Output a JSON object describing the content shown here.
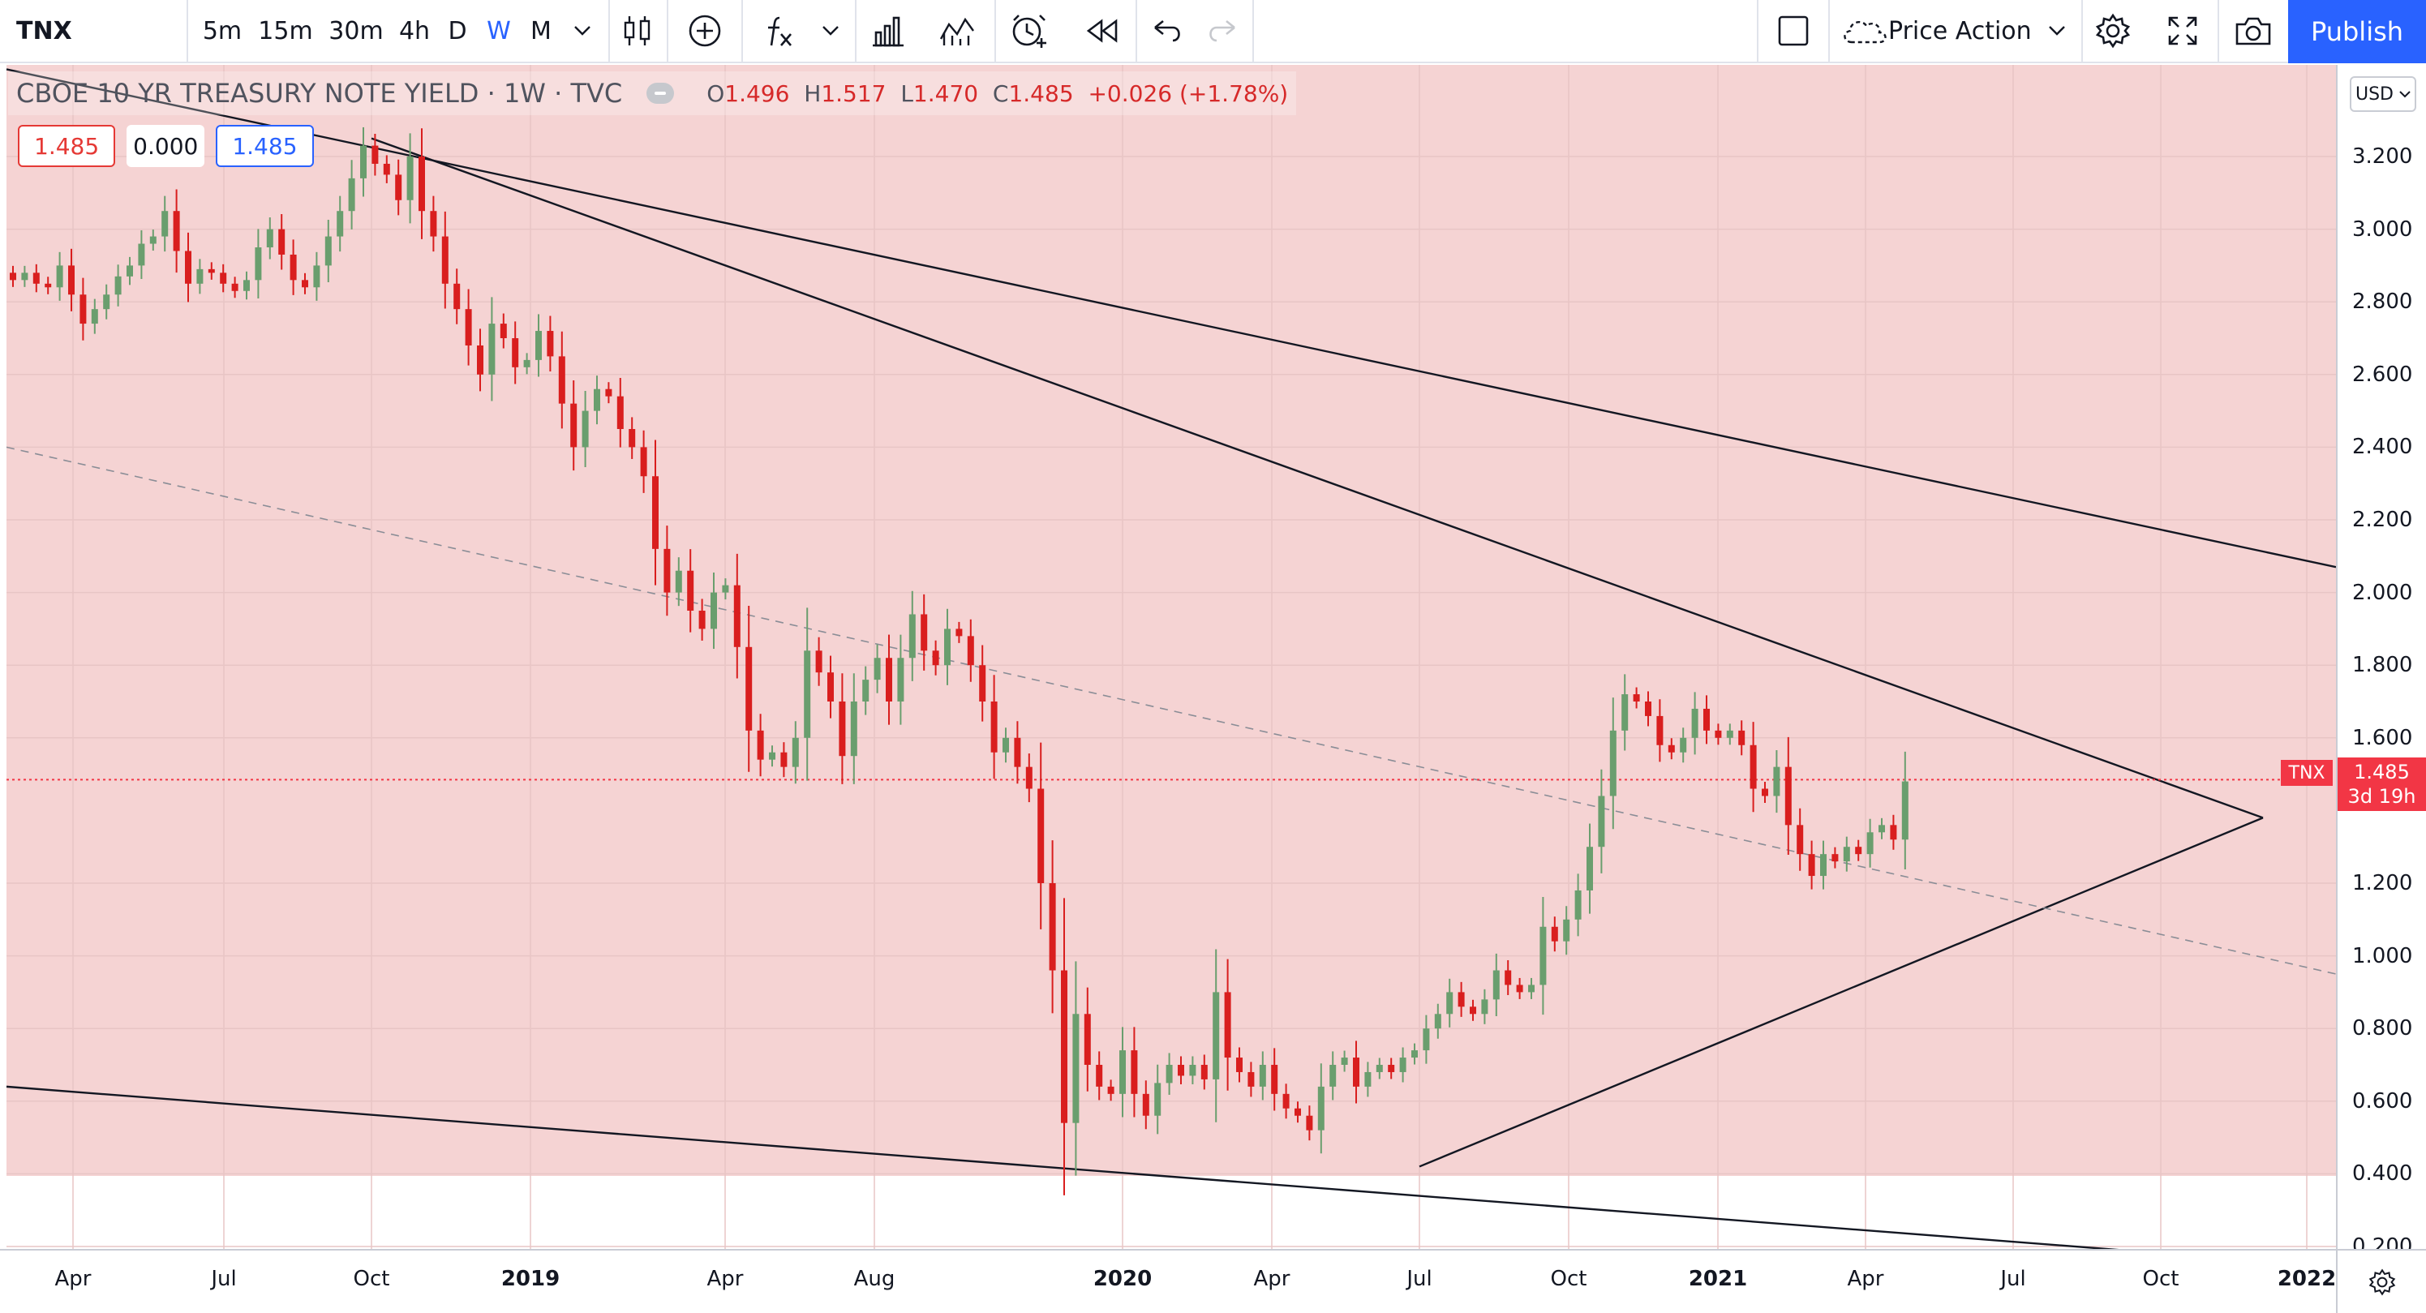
{
  "toolbar": {
    "symbol": "TNX",
    "intervals": [
      "5m",
      "15m",
      "30m",
      "4h",
      "D",
      "W",
      "M"
    ],
    "active_interval": "W",
    "layout_name": "Price Action",
    "publish_label": "Publish"
  },
  "legend": {
    "title": "CBOE 10 YR TREASURY NOTE YIELD · 1W · TVC",
    "open_label": "O",
    "open": "1.496",
    "high_label": "H",
    "high": "1.517",
    "low_label": "L",
    "low": "1.470",
    "close_label": "C",
    "close": "1.485",
    "change": "+0.026 (+1.78%)",
    "value_a": "1.485",
    "value_b": "0.000",
    "value_c": "1.485"
  },
  "price_scale": {
    "currency": "USD",
    "ticks": [
      "3.200",
      "3.000",
      "2.800",
      "2.600",
      "2.400",
      "2.200",
      "2.000",
      "1.800",
      "1.600",
      "1.200",
      "1.000",
      "0.800",
      "0.600",
      "0.400",
      "0.200"
    ],
    "last_price": "1.485",
    "countdown": "3d 19h",
    "symbol_flag": "TNX"
  },
  "time_scale": {
    "ticks": [
      {
        "label": "Apr",
        "year": false
      },
      {
        "label": "Jul",
        "year": false
      },
      {
        "label": "Oct",
        "year": false
      },
      {
        "label": "2019",
        "year": true
      },
      {
        "label": "Apr",
        "year": false
      },
      {
        "label": "Aug",
        "year": false
      },
      {
        "label": "2020",
        "year": true
      },
      {
        "label": "Apr",
        "year": false
      },
      {
        "label": "Jul",
        "year": false
      },
      {
        "label": "Oct",
        "year": false
      },
      {
        "label": "2021",
        "year": true
      },
      {
        "label": "Apr",
        "year": false
      },
      {
        "label": "Jul",
        "year": false
      },
      {
        "label": "Oct",
        "year": false
      },
      {
        "label": "2022",
        "year": true
      }
    ]
  },
  "chart_data": {
    "type": "candlestick",
    "interval": "1W",
    "ylim": [
      0.2,
      3.3
    ],
    "last_price": 1.485,
    "weekly_closes": [
      2.86,
      2.88,
      2.85,
      2.84,
      2.9,
      2.82,
      2.74,
      2.78,
      2.82,
      2.87,
      2.9,
      2.96,
      2.98,
      3.05,
      2.94,
      2.85,
      2.89,
      2.88,
      2.85,
      2.83,
      2.86,
      2.95,
      3.0,
      2.93,
      2.86,
      2.84,
      2.9,
      2.98,
      3.05,
      3.14,
      3.23,
      3.18,
      3.15,
      3.08,
      3.2,
      3.05,
      2.98,
      2.85,
      2.78,
      2.68,
      2.6,
      2.74,
      2.7,
      2.62,
      2.64,
      2.72,
      2.65,
      2.52,
      2.4,
      2.5,
      2.56,
      2.54,
      2.45,
      2.4,
      2.32,
      2.12,
      2.0,
      2.06,
      1.95,
      1.9,
      2.0,
      2.02,
      1.85,
      1.62,
      1.54,
      1.56,
      1.52,
      1.6,
      1.84,
      1.78,
      1.7,
      1.55,
      1.7,
      1.76,
      1.82,
      1.7,
      1.82,
      1.94,
      1.84,
      1.8,
      1.9,
      1.88,
      1.8,
      1.7,
      1.56,
      1.6,
      1.52,
      1.46,
      1.2,
      0.96,
      0.54,
      0.84,
      0.7,
      0.64,
      0.62,
      0.74,
      0.62,
      0.56,
      0.65,
      0.7,
      0.67,
      0.7,
      0.66,
      0.9,
      0.72,
      0.68,
      0.64,
      0.7,
      0.62,
      0.58,
      0.56,
      0.52,
      0.64,
      0.7,
      0.72,
      0.64,
      0.68,
      0.7,
      0.68,
      0.72,
      0.74,
      0.8,
      0.84,
      0.9,
      0.86,
      0.84,
      0.88,
      0.96,
      0.92,
      0.9,
      0.92,
      1.08,
      1.04,
      1.1,
      1.18,
      1.3,
      1.44,
      1.62,
      1.72,
      1.7,
      1.66,
      1.58,
      1.56,
      1.6,
      1.68,
      1.62,
      1.6,
      1.62,
      1.58,
      1.46,
      1.44,
      1.52,
      1.36,
      1.28,
      1.22,
      1.28,
      1.26,
      1.3,
      1.28,
      1.34,
      1.36,
      1.32,
      1.48
    ],
    "trendlines": [
      {
        "style": "solid",
        "from": {
          "date": "2018-Jan",
          "value": 3.44
        },
        "to": {
          "date": "2022-Jan",
          "value": 2.07
        }
      },
      {
        "style": "solid",
        "from": {
          "date": "2018-Oct",
          "value": 3.25
        },
        "to": {
          "date": "2021-Dec",
          "value": 1.38
        }
      },
      {
        "style": "solid",
        "from": {
          "date": "2020-Jul",
          "value": 0.42
        },
        "to": {
          "date": "2021-Dec",
          "value": 1.38
        }
      },
      {
        "style": "solid",
        "from": {
          "date": "2018-Jan",
          "value": 0.64
        },
        "to": {
          "date": "2021-Dec",
          "value": 0.16
        }
      },
      {
        "style": "dashed",
        "from": {
          "date": "2018-Jan",
          "value": 2.4
        },
        "to": {
          "date": "2022-Jan",
          "value": 0.95
        }
      },
      {
        "style": "dotted",
        "color": "#f23645",
        "value": 1.485
      }
    ],
    "colors": {
      "up": "#6a9e6e",
      "down": "#d91e1e",
      "background_zone": "#f5d3d3"
    }
  }
}
